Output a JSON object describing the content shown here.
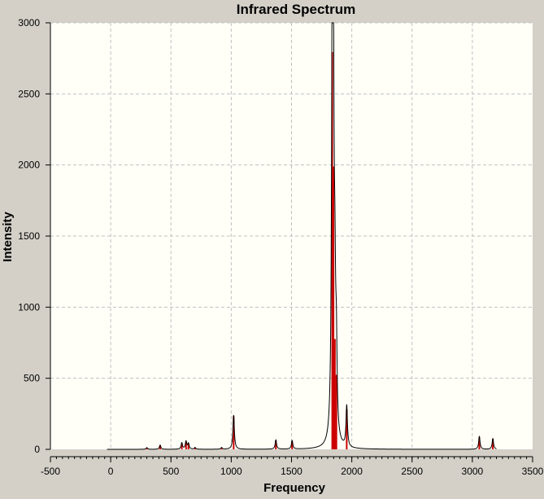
{
  "chart_data": {
    "type": "line",
    "title": "Infrared Spectrum",
    "xlabel": "Frequency",
    "ylabel": "Intensity",
    "xlim": [
      -500,
      3500
    ],
    "ylim": [
      0,
      3000
    ],
    "x_ticks": [
      -500,
      0,
      500,
      1000,
      1500,
      2000,
      2500,
      3000,
      3500
    ],
    "y_ticks": [
      0,
      500,
      1000,
      1500,
      2000,
      2500,
      3000
    ],
    "grid": true,
    "legend": "none",
    "colors": {
      "plot_background": "#fffff8",
      "frame_background": "#d4d0c8",
      "grid": "#c0c0c0",
      "spectrum_line": "#000000",
      "stick_line": "#cc0000"
    },
    "spectrum_range": [
      -30,
      3200
    ],
    "peaks": [
      {
        "x": 300,
        "y": 12
      },
      {
        "x": 410,
        "y": 30
      },
      {
        "x": 590,
        "y": 45
      },
      {
        "x": 625,
        "y": 55
      },
      {
        "x": 645,
        "y": 40
      },
      {
        "x": 700,
        "y": 12
      },
      {
        "x": 920,
        "y": 12
      },
      {
        "x": 1020,
        "y": 240
      },
      {
        "x": 1370,
        "y": 65
      },
      {
        "x": 1505,
        "y": 60
      },
      {
        "x": 1838,
        "y": 2880
      },
      {
        "x": 1848,
        "y": 2050
      },
      {
        "x": 1860,
        "y": 800
      },
      {
        "x": 1872,
        "y": 540
      },
      {
        "x": 1958,
        "y": 290
      },
      {
        "x": 3058,
        "y": 90
      },
      {
        "x": 3170,
        "y": 75
      }
    ]
  }
}
